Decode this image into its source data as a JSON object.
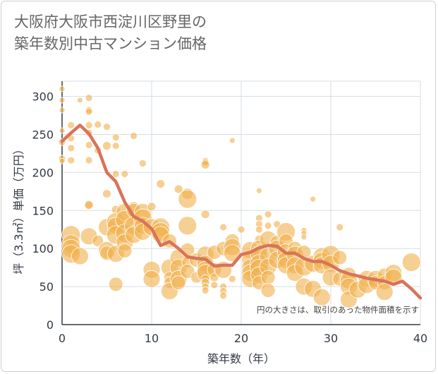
{
  "title_line1": "大阪府大阪市西淀川区野里の",
  "title_line2": "築年数別中古マンション価格",
  "chart_data": {
    "type": "scatter",
    "xlabel": "築年数（年）",
    "ylabel": "坪（3.3㎡）単価（万円）",
    "note": "円の大きさは、取引のあった物件面積を示す",
    "xlim": [
      0,
      40
    ],
    "ylim": [
      0,
      320
    ],
    "xticks": [
      "0",
      "10",
      "20",
      "30",
      "40"
    ],
    "yticks": [
      "0",
      "50",
      "100",
      "150",
      "200",
      "250",
      "300"
    ],
    "xtick_values": [
      0,
      10,
      20,
      30,
      40
    ],
    "ytick_values": [
      0,
      50,
      100,
      150,
      200,
      250,
      300
    ],
    "grid": true,
    "colors": {
      "bubble": "#f0b14f",
      "line": "#d9735a",
      "grid": "#d5dde6",
      "axis": "#333a44"
    },
    "points": [
      [
        0,
        310,
        4
      ],
      [
        0,
        295,
        4
      ],
      [
        0,
        282,
        4
      ],
      [
        0,
        255,
        4
      ],
      [
        0,
        240,
        5
      ],
      [
        0,
        218,
        5
      ],
      [
        0,
        215,
        4
      ],
      [
        1,
        262,
        5
      ],
      [
        1,
        245,
        5
      ],
      [
        1,
        232,
        5
      ],
      [
        1,
        216,
        5
      ],
      [
        1,
        118,
        13
      ],
      [
        1,
        106,
        13
      ],
      [
        1,
        100,
        13
      ],
      [
        1,
        93,
        13
      ],
      [
        2,
        295,
        4
      ],
      [
        2,
        90,
        12
      ],
      [
        3,
        298,
        5
      ],
      [
        3,
        282,
        5
      ],
      [
        3,
        280,
        5
      ],
      [
        3,
        262,
        5
      ],
      [
        3,
        252,
        5
      ],
      [
        3,
        236,
        5
      ],
      [
        3,
        216,
        5
      ],
      [
        3,
        158,
        6
      ],
      [
        3,
        157,
        6
      ],
      [
        3,
        116,
        12
      ],
      [
        4,
        263,
        5
      ],
      [
        4,
        229,
        5
      ],
      [
        4,
        110,
        8
      ],
      [
        5,
        260,
        5
      ],
      [
        5,
        235,
        6
      ],
      [
        5,
        172,
        6
      ],
      [
        5,
        128,
        12
      ],
      [
        5,
        98,
        12
      ],
      [
        5,
        94,
        10
      ],
      [
        6,
        246,
        5
      ],
      [
        6,
        235,
        5
      ],
      [
        6,
        198,
        5
      ],
      [
        6,
        151,
        6
      ],
      [
        6,
        135,
        13
      ],
      [
        6,
        130,
        12
      ],
      [
        6,
        118,
        13
      ],
      [
        6,
        93,
        12
      ],
      [
        6,
        53,
        10
      ],
      [
        7,
        198,
        5
      ],
      [
        7,
        148,
        12
      ],
      [
        7,
        138,
        13
      ],
      [
        7,
        120,
        13
      ],
      [
        7,
        108,
        12
      ],
      [
        7,
        97,
        10
      ],
      [
        8,
        248,
        5
      ],
      [
        8,
        154,
        8
      ],
      [
        8,
        150,
        10
      ],
      [
        8,
        130,
        13
      ],
      [
        8,
        118,
        12
      ],
      [
        9,
        212,
        5
      ],
      [
        9,
        148,
        12
      ],
      [
        9,
        140,
        13
      ],
      [
        9,
        130,
        12
      ],
      [
        9,
        122,
        12
      ],
      [
        10,
        155,
        6
      ],
      [
        10,
        128,
        12
      ],
      [
        10,
        72,
        12
      ],
      [
        10,
        60,
        12
      ],
      [
        11,
        185,
        6
      ],
      [
        11,
        128,
        13
      ],
      [
        11,
        122,
        13
      ],
      [
        11,
        118,
        12
      ],
      [
        12,
        110,
        10
      ],
      [
        12,
        75,
        12
      ],
      [
        12,
        62,
        8
      ],
      [
        12,
        55,
        8
      ],
      [
        12,
        44,
        12
      ],
      [
        13,
        178,
        6
      ],
      [
        13,
        88,
        12
      ],
      [
        13,
        75,
        12
      ],
      [
        13,
        60,
        12
      ],
      [
        13,
        55,
        10
      ],
      [
        14,
        172,
        8
      ],
      [
        14,
        165,
        13
      ],
      [
        14,
        130,
        13
      ],
      [
        14,
        98,
        10
      ],
      [
        14,
        82,
        8
      ],
      [
        14,
        70,
        10
      ],
      [
        15,
        85,
        10
      ],
      [
        15,
        62,
        8
      ],
      [
        16,
        215,
        5
      ],
      [
        16,
        213,
        5
      ],
      [
        16,
        210,
        6
      ],
      [
        16,
        145,
        6
      ],
      [
        16,
        92,
        12
      ],
      [
        16,
        80,
        12
      ],
      [
        16,
        72,
        12
      ],
      [
        16,
        68,
        12
      ],
      [
        16,
        60,
        6
      ],
      [
        16,
        55,
        6
      ],
      [
        16,
        50,
        5
      ],
      [
        16,
        45,
        5
      ],
      [
        17,
        95,
        10
      ],
      [
        17,
        72,
        10
      ],
      [
        17,
        62,
        6
      ],
      [
        17,
        52,
        5
      ],
      [
        18,
        128,
        5
      ],
      [
        18,
        100,
        10
      ],
      [
        18,
        72,
        12
      ],
      [
        18,
        50,
        5
      ],
      [
        18,
        44,
        5
      ],
      [
        18,
        38,
        5
      ],
      [
        19,
        242,
        4
      ],
      [
        19,
        110,
        10
      ],
      [
        19,
        102,
        12
      ],
      [
        19,
        94,
        12
      ],
      [
        19,
        60,
        5
      ],
      [
        20,
        125,
        5
      ],
      [
        21,
        98,
        12
      ],
      [
        21,
        85,
        12
      ],
      [
        21,
        75,
        12
      ],
      [
        21,
        68,
        12
      ],
      [
        21,
        60,
        12
      ],
      [
        22,
        176,
        4
      ],
      [
        22,
        140,
        5
      ],
      [
        22,
        132,
        5
      ],
      [
        22,
        125,
        5
      ],
      [
        22,
        112,
        6
      ],
      [
        22,
        100,
        12
      ],
      [
        22,
        92,
        12
      ],
      [
        22,
        80,
        13
      ],
      [
        22,
        74,
        13
      ],
      [
        22,
        65,
        12
      ],
      [
        22,
        55,
        10
      ],
      [
        23,
        145,
        5
      ],
      [
        23,
        130,
        5
      ],
      [
        23,
        112,
        12
      ],
      [
        23,
        90,
        12
      ],
      [
        23,
        76,
        12
      ],
      [
        23,
        62,
        10
      ],
      [
        23,
        45,
        10
      ],
      [
        24,
        132,
        5
      ],
      [
        24,
        108,
        10
      ],
      [
        24,
        100,
        12
      ],
      [
        24,
        85,
        12
      ],
      [
        25,
        122,
        13
      ],
      [
        25,
        110,
        10
      ],
      [
        25,
        95,
        12
      ],
      [
        25,
        85,
        12
      ],
      [
        25,
        78,
        12
      ],
      [
        26,
        100,
        10
      ],
      [
        26,
        92,
        12
      ],
      [
        26,
        78,
        12
      ],
      [
        26,
        68,
        12
      ],
      [
        27,
        124,
        4
      ],
      [
        27,
        120,
        4
      ],
      [
        27,
        115,
        4
      ],
      [
        27,
        95,
        10
      ],
      [
        27,
        76,
        13
      ],
      [
        27,
        50,
        12
      ],
      [
        28,
        165,
        4
      ],
      [
        28,
        80,
        12
      ],
      [
        28,
        47,
        12
      ],
      [
        29,
        90,
        12
      ],
      [
        29,
        84,
        12
      ],
      [
        29,
        78,
        12
      ],
      [
        29,
        36,
        12
      ],
      [
        30,
        92,
        13
      ],
      [
        30,
        80,
        12
      ],
      [
        30,
        62,
        12
      ],
      [
        31,
        128,
        5
      ],
      [
        31,
        88,
        10
      ],
      [
        31,
        60,
        10
      ],
      [
        32,
        66,
        10
      ],
      [
        32,
        58,
        12
      ],
      [
        32,
        50,
        12
      ],
      [
        32,
        33,
        12
      ],
      [
        33,
        46,
        12
      ],
      [
        34,
        60,
        12
      ],
      [
        34,
        52,
        12
      ],
      [
        35,
        60,
        12
      ],
      [
        35,
        55,
        10
      ],
      [
        36,
        65,
        10
      ],
      [
        36,
        55,
        10
      ],
      [
        36,
        43,
        12
      ],
      [
        37,
        68,
        12
      ],
      [
        37,
        62,
        12
      ],
      [
        39,
        82,
        13
      ]
    ],
    "trend": {
      "name": "",
      "x": [
        0,
        1,
        2,
        3,
        4,
        5,
        6,
        7,
        8,
        9,
        10,
        11,
        12,
        13,
        14,
        15,
        16,
        17,
        18,
        19,
        20,
        21,
        22,
        23,
        24,
        25,
        26,
        27,
        28,
        29,
        30,
        31,
        32,
        33,
        34,
        35,
        36,
        37,
        38,
        39,
        40
      ],
      "y": [
        241,
        252,
        262,
        251,
        232,
        200,
        188,
        161,
        142,
        136,
        126,
        104,
        109,
        100,
        89,
        87,
        86,
        77,
        78,
        78,
        92,
        95,
        101,
        104,
        103,
        94,
        94,
        87,
        83,
        83,
        78,
        71,
        67,
        64,
        61,
        59,
        57,
        53,
        57,
        47,
        35
      ]
    }
  }
}
